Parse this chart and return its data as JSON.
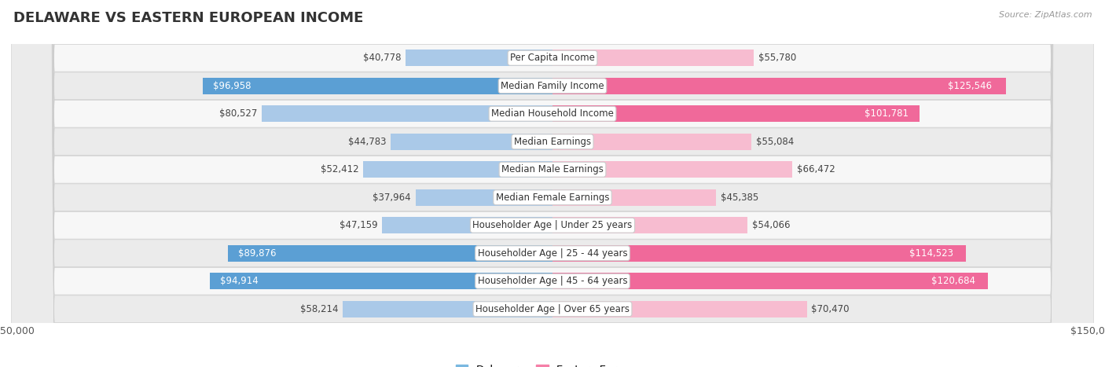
{
  "title": "DELAWARE VS EASTERN EUROPEAN INCOME",
  "source": "Source: ZipAtlas.com",
  "categories": [
    "Per Capita Income",
    "Median Family Income",
    "Median Household Income",
    "Median Earnings",
    "Median Male Earnings",
    "Median Female Earnings",
    "Householder Age | Under 25 years",
    "Householder Age | 25 - 44 years",
    "Householder Age | 45 - 64 years",
    "Householder Age | Over 65 years"
  ],
  "delaware_values": [
    40778,
    96958,
    80527,
    44783,
    52412,
    37964,
    47159,
    89876,
    94914,
    58214
  ],
  "eastern_values": [
    55780,
    125546,
    101781,
    55084,
    66472,
    45385,
    54066,
    114523,
    120684,
    70470
  ],
  "delaware_labels": [
    "$40,778",
    "$96,958",
    "$80,527",
    "$44,783",
    "$52,412",
    "$37,964",
    "$47,159",
    "$89,876",
    "$94,914",
    "$58,214"
  ],
  "eastern_labels": [
    "$55,780",
    "$125,546",
    "$101,781",
    "$55,084",
    "$66,472",
    "$45,385",
    "$54,066",
    "$114,523",
    "$120,684",
    "$70,470"
  ],
  "delaware_color_light": "#aac9e8",
  "delaware_color_dark": "#5b9fd4",
  "eastern_color_light": "#f7bcd0",
  "eastern_color_dark": "#f0699a",
  "max_value": 150000,
  "bar_height": 0.58,
  "background_color": "#ffffff",
  "row_bg_colors": [
    "#f7f7f7",
    "#ebebeb"
  ],
  "title_fontsize": 13,
  "label_fontsize": 8.5,
  "legend_fontsize": 9.5,
  "axis_fontsize": 9,
  "inside_label_threshold": 0.55
}
